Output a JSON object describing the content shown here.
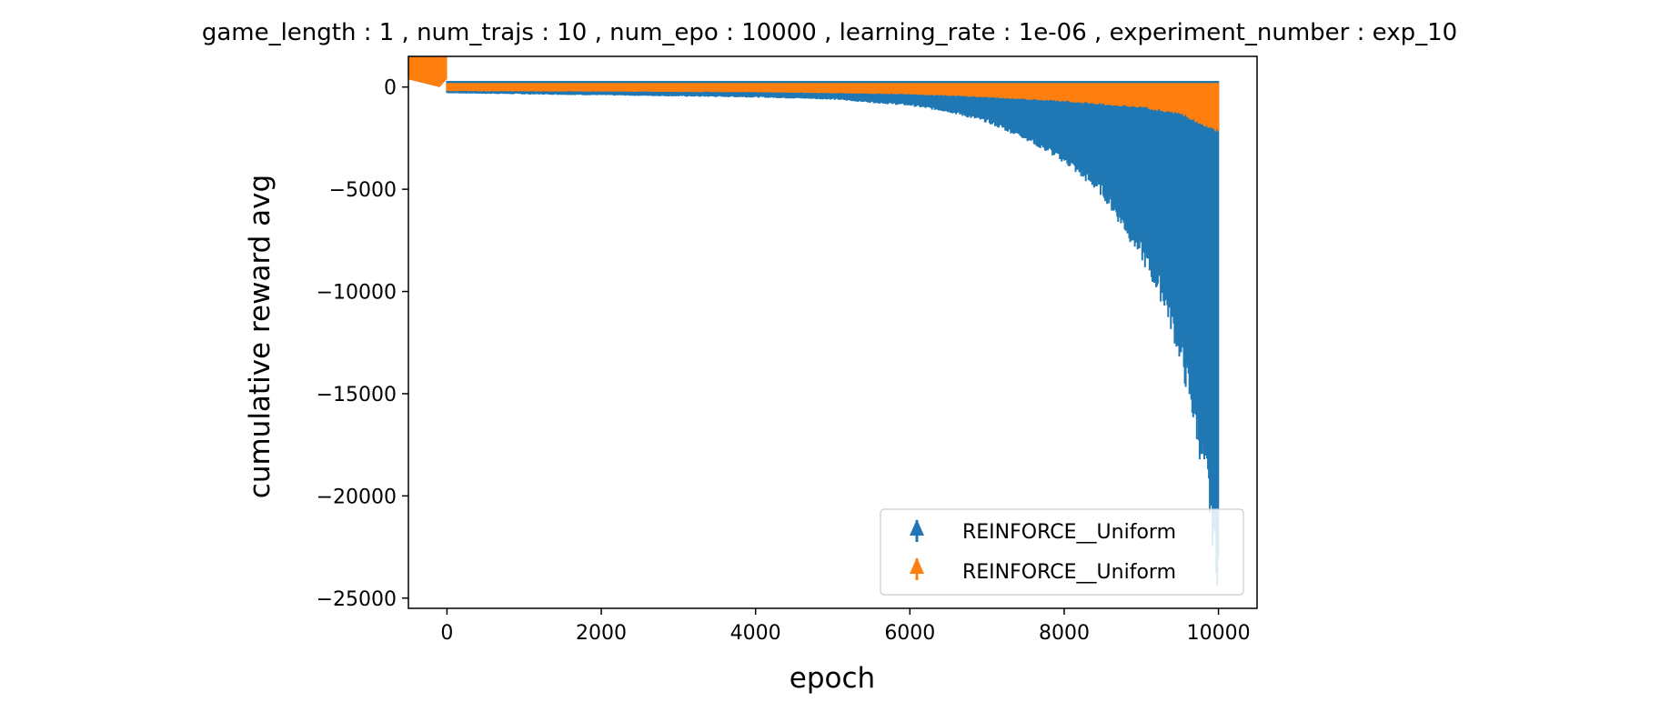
{
  "chart_data": {
    "type": "errorbar",
    "title": "game_length : 1 , num_trajs : 10 , num_epo : 10000 , learning_rate : 1e-06 , experiment_number : exp_10",
    "xlabel": "epoch",
    "ylabel": "cumulative reward avg",
    "xlim": [
      -500,
      10500
    ],
    "ylim": [
      -25500,
      1500
    ],
    "xticks": [
      0,
      2000,
      4000,
      6000,
      8000,
      10000
    ],
    "xtick_labels": [
      "0",
      "2000",
      "4000",
      "6000",
      "8000",
      "10000"
    ],
    "yticks": [
      0,
      -5000,
      -10000,
      -15000,
      -20000,
      -25000
    ],
    "ytick_labels": [
      "0",
      "−5000",
      "−10000",
      "−15000",
      "−20000",
      "−25000"
    ],
    "grid": false,
    "legend_position": "lower-right",
    "series": [
      {
        "name": "REINFORCE__Uniform",
        "color": "#1f77b4",
        "marker": "triangle-up",
        "x": [
          0,
          1000,
          2000,
          3000,
          4000,
          5000,
          6000,
          6500,
          7000,
          7500,
          8000,
          8500,
          9000,
          9300,
          9500,
          9700,
          9850,
          10000
        ],
        "err_low": [
          -300,
          -350,
          -400,
          -450,
          -500,
          -600,
          -900,
          -1200,
          -1700,
          -2500,
          -3600,
          -5200,
          -8200,
          -10500,
          -13000,
          -16500,
          -19500,
          -24000
        ],
        "err_high": [
          300,
          300,
          300,
          300,
          300,
          300,
          300,
          300,
          300,
          300,
          300,
          300,
          300,
          300,
          300,
          300,
          300,
          300
        ],
        "marker_band": [
          -7800,
          -18300
        ]
      },
      {
        "name": "REINFORCE__Uniform",
        "color": "#ff7f0e",
        "marker": "triangle-up",
        "x": [
          0,
          2000,
          4000,
          5000,
          6000,
          7000,
          8000,
          9000,
          9500,
          10000
        ],
        "err_low": [
          -200,
          -220,
          -250,
          -300,
          -350,
          -500,
          -700,
          -1000,
          -1300,
          -2200
        ],
        "err_high": [
          200,
          200,
          200,
          200,
          200,
          200,
          200,
          200,
          200,
          200
        ],
        "marker_band": [
          -500,
          -2000
        ]
      }
    ]
  }
}
